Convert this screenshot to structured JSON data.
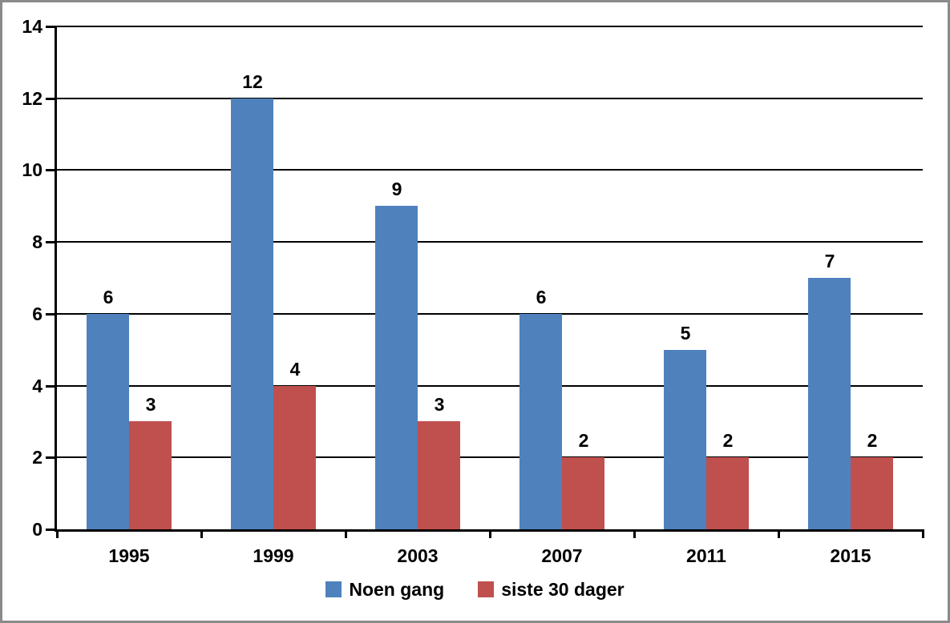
{
  "chart_data": {
    "type": "bar",
    "title": "",
    "xlabel": "",
    "ylabel": "",
    "categories": [
      "1995",
      "1999",
      "2003",
      "2007",
      "2011",
      "2015"
    ],
    "series": [
      {
        "name": "Noen gang",
        "color": "#4F81BD",
        "values": [
          6,
          12,
          9,
          6,
          5,
          7
        ]
      },
      {
        "name": "siste 30 dager",
        "color": "#C0504D",
        "values": [
          3,
          4,
          3,
          2,
          2,
          2
        ]
      }
    ],
    "ylim": [
      0,
      14
    ],
    "yticks": [
      0,
      2,
      4,
      6,
      8,
      10,
      12,
      14
    ],
    "grid": true,
    "bar_value_labels": true,
    "legend_position": "bottom",
    "colors": {
      "gridline": "#000000",
      "axis": "#000000",
      "text": "#000000",
      "frame_border": "#8a8a8a",
      "background": "#ffffff"
    }
  }
}
